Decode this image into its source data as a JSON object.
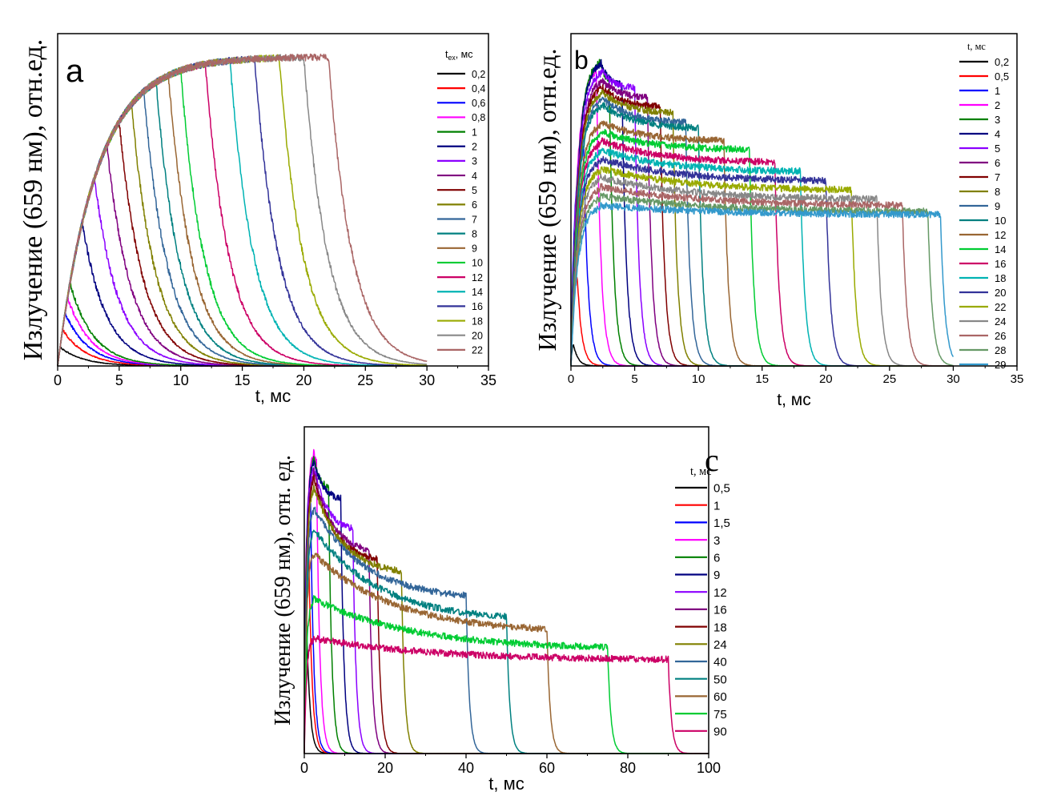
{
  "chart_data": [
    {
      "type": "line",
      "panel_label": "a",
      "xlabel": "t, мс",
      "ylabel": "Излучение (659 нм), отн.ед.",
      "xlim": [
        0,
        35
      ],
      "xticks": [
        "0",
        "5",
        "10",
        "15",
        "20",
        "25",
        "30",
        "35"
      ],
      "legend_title": "t",
      "legend_title_sub": "ex",
      "legend_title_unit": ", мс",
      "legend_placement": "top-right",
      "model": {
        "kind": "saturation",
        "rise_tau": 3.2,
        "decay_tau": 1.9,
        "end_time": 30
      },
      "series": [
        {
          "name": "0,2",
          "color": "#000000",
          "pulse": 0.2
        },
        {
          "name": "0,4",
          "color": "#ff0000",
          "pulse": 0.4
        },
        {
          "name": "0,6",
          "color": "#0000ff",
          "pulse": 0.6
        },
        {
          "name": "0,8",
          "color": "#ff00ff",
          "pulse": 0.8
        },
        {
          "name": "1",
          "color": "#008000",
          "pulse": 1
        },
        {
          "name": "2",
          "color": "#000080",
          "pulse": 2
        },
        {
          "name": "3",
          "color": "#8b00ff",
          "pulse": 3
        },
        {
          "name": "4",
          "color": "#800080",
          "pulse": 4
        },
        {
          "name": "5",
          "color": "#800000",
          "pulse": 5
        },
        {
          "name": "6",
          "color": "#808000",
          "pulse": 6
        },
        {
          "name": "7",
          "color": "#336699",
          "pulse": 7
        },
        {
          "name": "8",
          "color": "#008080",
          "pulse": 8
        },
        {
          "name": "9",
          "color": "#996633",
          "pulse": 9
        },
        {
          "name": "10",
          "color": "#00cc33",
          "pulse": 10
        },
        {
          "name": "12",
          "color": "#cc0066",
          "pulse": 12
        },
        {
          "name": "14",
          "color": "#00b3b3",
          "pulse": 14
        },
        {
          "name": "16",
          "color": "#333399",
          "pulse": 16
        },
        {
          "name": "18",
          "color": "#99aa00",
          "pulse": 18
        },
        {
          "name": "20",
          "color": "#888888",
          "pulse": 20
        },
        {
          "name": "22",
          "color": "#aa6666",
          "pulse": 22
        }
      ]
    },
    {
      "type": "line",
      "panel_label": "b",
      "xlabel": "t, мс",
      "ylabel": "Излучение (659 нм), отн.ед.",
      "xlim": [
        0,
        35
      ],
      "xticks": [
        "0",
        "5",
        "10",
        "15",
        "20",
        "25",
        "30",
        "35"
      ],
      "legend_title": "t, мс",
      "legend_placement": "right",
      "model": {
        "kind": "peak_plateau",
        "rise_tau": 0.5,
        "decay_tau": 0.35,
        "end_time": 30
      },
      "series": [
        {
          "name": "0,2",
          "color": "#000000",
          "pulse": 0.2,
          "peak": 0.08,
          "level": 0.08
        },
        {
          "name": "0,5",
          "color": "#ff0000",
          "pulse": 0.5,
          "peak": 0.3,
          "level": 0.3
        },
        {
          "name": "1",
          "color": "#0000ff",
          "pulse": 1,
          "peak": 0.72,
          "level": 0.72
        },
        {
          "name": "2",
          "color": "#ff00ff",
          "pulse": 2,
          "peak": 0.97,
          "level": 0.93
        },
        {
          "name": "3",
          "color": "#008000",
          "pulse": 3,
          "peak": 1.0,
          "level": 0.93
        },
        {
          "name": "4",
          "color": "#000080",
          "pulse": 4,
          "peak": 0.99,
          "level": 0.91
        },
        {
          "name": "5",
          "color": "#8b00ff",
          "pulse": 5,
          "peak": 0.96,
          "level": 0.9
        },
        {
          "name": "6",
          "color": "#800080",
          "pulse": 6,
          "peak": 0.93,
          "level": 0.87
        },
        {
          "name": "7",
          "color": "#800000",
          "pulse": 7,
          "peak": 0.91,
          "level": 0.84
        },
        {
          "name": "8",
          "color": "#808000",
          "pulse": 8,
          "peak": 0.89,
          "level": 0.82
        },
        {
          "name": "9",
          "color": "#336699",
          "pulse": 9,
          "peak": 0.87,
          "level": 0.79
        },
        {
          "name": "10",
          "color": "#008080",
          "pulse": 10,
          "peak": 0.85,
          "level": 0.77
        },
        {
          "name": "12",
          "color": "#996633",
          "pulse": 12,
          "peak": 0.79,
          "level": 0.73
        },
        {
          "name": "14",
          "color": "#00cc33",
          "pulse": 14,
          "peak": 0.76,
          "level": 0.7
        },
        {
          "name": "16",
          "color": "#cc0066",
          "pulse": 16,
          "peak": 0.73,
          "level": 0.66
        },
        {
          "name": "18",
          "color": "#00b3b3",
          "pulse": 18,
          "peak": 0.7,
          "level": 0.63
        },
        {
          "name": "20",
          "color": "#333399",
          "pulse": 20,
          "peak": 0.67,
          "level": 0.6
        },
        {
          "name": "22",
          "color": "#99aa00",
          "pulse": 22,
          "peak": 0.64,
          "level": 0.57
        },
        {
          "name": "24",
          "color": "#888888",
          "pulse": 24,
          "peak": 0.61,
          "level": 0.54
        },
        {
          "name": "26",
          "color": "#aa6666",
          "pulse": 26,
          "peak": 0.58,
          "level": 0.52
        },
        {
          "name": "28",
          "color": "#669966",
          "pulse": 28,
          "peak": 0.55,
          "level": 0.5
        },
        {
          "name": "29",
          "color": "#3399cc",
          "pulse": 29,
          "peak": 0.52,
          "level": 0.49
        }
      ]
    },
    {
      "type": "line",
      "panel_label": "c",
      "xlabel": "t, мс",
      "ylabel": "Излучение (659 нм), отн. ед.",
      "xlim": [
        0,
        100
      ],
      "xticks": [
        "0",
        "20",
        "40",
        "60",
        "80",
        "100"
      ],
      "legend_title": "t, мс",
      "legend_placement": "right",
      "model": {
        "kind": "peak_plateau",
        "rise_tau": 0.5,
        "decay_tau": 0.8,
        "end_time": 100
      },
      "series": [
        {
          "name": "0,5",
          "color": "#000000",
          "pulse": 0.5,
          "peak": 0.5,
          "level": 0.5
        },
        {
          "name": "1",
          "color": "#ff0000",
          "pulse": 1,
          "peak": 0.8,
          "level": 0.8
        },
        {
          "name": "1,5",
          "color": "#0000ff",
          "pulse": 1.5,
          "peak": 0.9,
          "level": 0.9
        },
        {
          "name": "3",
          "color": "#ff00ff",
          "pulse": 3,
          "peak": 1.0,
          "level": 0.97
        },
        {
          "name": "6",
          "color": "#008000",
          "pulse": 6,
          "peak": 0.98,
          "level": 0.88
        },
        {
          "name": "9",
          "color": "#000080",
          "pulse": 9,
          "peak": 0.97,
          "level": 0.84
        },
        {
          "name": "12",
          "color": "#8b00ff",
          "pulse": 12,
          "peak": 0.95,
          "level": 0.74
        },
        {
          "name": "16",
          "color": "#800080",
          "pulse": 16,
          "peak": 0.93,
          "level": 0.67
        },
        {
          "name": "18",
          "color": "#800000",
          "pulse": 18,
          "peak": 0.91,
          "level": 0.64
        },
        {
          "name": "24",
          "color": "#808000",
          "pulse": 24,
          "peak": 0.88,
          "level": 0.6
        },
        {
          "name": "40",
          "color": "#336699",
          "pulse": 40,
          "peak": 0.81,
          "level": 0.52
        },
        {
          "name": "50",
          "color": "#008080",
          "pulse": 50,
          "peak": 0.74,
          "level": 0.45
        },
        {
          "name": "60",
          "color": "#996633",
          "pulse": 60,
          "peak": 0.66,
          "level": 0.41
        },
        {
          "name": "75",
          "color": "#00cc33",
          "pulse": 75,
          "peak": 0.51,
          "level": 0.35
        },
        {
          "name": "90",
          "color": "#cc0066",
          "pulse": 90,
          "peak": 0.38,
          "level": 0.31
        }
      ]
    }
  ]
}
